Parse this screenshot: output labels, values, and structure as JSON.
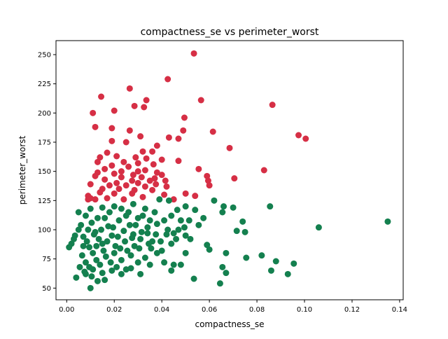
{
  "chart_data": {
    "type": "scatter",
    "title": "compactness_se vs perimeter_worst",
    "xlabel": "compactness_se",
    "ylabel": "perimeter_worst",
    "xlim": [
      -0.0045,
      0.1415
    ],
    "ylim": [
      40,
      262
    ],
    "xticks": [
      0.0,
      0.02,
      0.04,
      0.06,
      0.08,
      0.1,
      0.12,
      0.14
    ],
    "xtick_labels": [
      "0.00",
      "0.02",
      "0.04",
      "0.06",
      "0.08",
      "0.10",
      "0.12",
      "0.14"
    ],
    "yticks": [
      50,
      75,
      100,
      125,
      150,
      175,
      200,
      225,
      250
    ],
    "ytick_labels": [
      "50",
      "75",
      "100",
      "125",
      "150",
      "175",
      "200",
      "225",
      "250"
    ],
    "grid": false,
    "legend": "none",
    "series": [
      {
        "color": "#d62f45",
        "points": [
          [
            0.0535,
            251
          ],
          [
            0.0425,
            229
          ],
          [
            0.0265,
            221
          ],
          [
            0.0145,
            214
          ],
          [
            0.0335,
            211
          ],
          [
            0.0565,
            211
          ],
          [
            0.0865,
            207
          ],
          [
            0.0285,
            206
          ],
          [
            0.0325,
            205
          ],
          [
            0.011,
            200
          ],
          [
            0.02,
            202
          ],
          [
            0.0495,
            196
          ],
          [
            0.012,
            188
          ],
          [
            0.019,
            187
          ],
          [
            0.0265,
            185
          ],
          [
            0.049,
            185
          ],
          [
            0.0615,
            184
          ],
          [
            0.031,
            180
          ],
          [
            0.043,
            179
          ],
          [
            0.047,
            178
          ],
          [
            0.0975,
            181
          ],
          [
            0.1005,
            178
          ],
          [
            0.019,
            176
          ],
          [
            0.025,
            175
          ],
          [
            0.038,
            172
          ],
          [
            0.0685,
            170
          ],
          [
            0.032,
            167
          ],
          [
            0.036,
            167
          ],
          [
            0.017,
            166
          ],
          [
            0.021,
            163
          ],
          [
            0.014,
            162
          ],
          [
            0.029,
            162
          ],
          [
            0.0335,
            161
          ],
          [
            0.04,
            160
          ],
          [
            0.047,
            159
          ],
          [
            0.013,
            158
          ],
          [
            0.024,
            158
          ],
          [
            0.03,
            157
          ],
          [
            0.0365,
            156
          ],
          [
            0.019,
            155
          ],
          [
            0.026,
            154
          ],
          [
            0.016,
            152
          ],
          [
            0.0555,
            152
          ],
          [
            0.033,
            151
          ],
          [
            0.083,
            151
          ],
          [
            0.023,
            150
          ],
          [
            0.03,
            150
          ],
          [
            0.038,
            149
          ],
          [
            0.013,
            149
          ],
          [
            0.02,
            148
          ],
          [
            0.028,
            147
          ],
          [
            0.04,
            147
          ],
          [
            0.012,
            146
          ],
          [
            0.059,
            146
          ],
          [
            0.023,
            145
          ],
          [
            0.0315,
            145
          ],
          [
            0.037,
            144
          ],
          [
            0.0705,
            144
          ],
          [
            0.016,
            143
          ],
          [
            0.0275,
            142
          ],
          [
            0.035,
            142
          ],
          [
            0.0415,
            142
          ],
          [
            0.0595,
            142
          ],
          [
            0.021,
            140
          ],
          [
            0.03,
            140
          ],
          [
            0.0375,
            139
          ],
          [
            0.01,
            139
          ],
          [
            0.018,
            138
          ],
          [
            0.025,
            138
          ],
          [
            0.06,
            138
          ],
          [
            0.033,
            137
          ],
          [
            0.042,
            137
          ],
          [
            0.015,
            135
          ],
          [
            0.022,
            135
          ],
          [
            0.0285,
            134
          ],
          [
            0.036,
            134
          ],
          [
            0.014,
            132
          ],
          [
            0.02,
            131
          ],
          [
            0.0275,
            131
          ],
          [
            0.041,
            130
          ],
          [
            0.05,
            131
          ],
          [
            0.054,
            129
          ],
          [
            0.009,
            129
          ],
          [
            0.01,
            127
          ],
          [
            0.012,
            126
          ],
          [
            0.024,
            126
          ],
          [
            0.032,
            128
          ],
          [
            0.045,
            126
          ],
          [
            0.009,
            126
          ],
          [
            0.017,
            127
          ]
        ]
      },
      {
        "color": "#14804f",
        "points": [
          [
            0.135,
            107
          ],
          [
            0.106,
            102
          ],
          [
            0.0855,
            120
          ],
          [
            0.074,
            107
          ],
          [
            0.0715,
            99
          ],
          [
            0.075,
            98
          ],
          [
            0.07,
            119
          ],
          [
            0.066,
            120
          ],
          [
            0.0655,
            115
          ],
          [
            0.062,
            125
          ],
          [
            0.0575,
            110
          ],
          [
            0.0555,
            104
          ],
          [
            0.059,
            87
          ],
          [
            0.06,
            83
          ],
          [
            0.067,
            80
          ],
          [
            0.082,
            78
          ],
          [
            0.088,
            73
          ],
          [
            0.0955,
            71
          ],
          [
            0.0755,
            76
          ],
          [
            0.086,
            65
          ],
          [
            0.093,
            62
          ],
          [
            0.0655,
            68
          ],
          [
            0.067,
            63
          ],
          [
            0.0645,
            54
          ],
          [
            0.0535,
            58
          ],
          [
            0.01,
            50
          ],
          [
            0.013,
            56
          ],
          [
            0.016,
            57
          ],
          [
            0.004,
            59
          ],
          [
            0.008,
            62
          ],
          [
            0.031,
            62
          ],
          [
            0.044,
            65
          ],
          [
            0.054,
            117
          ],
          [
            0.05,
            120
          ],
          [
            0.048,
            108
          ],
          [
            0.0465,
            117
          ],
          [
            0.043,
            125
          ],
          [
            0.039,
            126
          ],
          [
            0.002,
            88
          ],
          [
            0.0035,
            95
          ],
          [
            0.005,
            100
          ],
          [
            0.006,
            104
          ],
          [
            0.007,
            94
          ],
          [
            0.0085,
            90
          ],
          [
            0.0095,
            85
          ],
          [
            0.011,
            80
          ],
          [
            0.012,
            98
          ],
          [
            0.0135,
            92
          ],
          [
            0.015,
            88
          ],
          [
            0.016,
            110
          ],
          [
            0.0175,
            103
          ],
          [
            0.019,
            95
          ],
          [
            0.0205,
            86
          ],
          [
            0.022,
            108
          ],
          [
            0.024,
            99
          ],
          [
            0.026,
            115
          ],
          [
            0.0275,
            93
          ],
          [
            0.029,
            104
          ],
          [
            0.0305,
            84
          ],
          [
            0.032,
            112
          ],
          [
            0.034,
            97
          ],
          [
            0.036,
            90
          ],
          [
            0.038,
            105
          ],
          [
            0.04,
            82
          ],
          [
            0.042,
            96
          ],
          [
            0.044,
            88
          ],
          [
            0.046,
            92
          ],
          [
            0.048,
            70
          ],
          [
            0.05,
            80
          ],
          [
            0.0065,
            78
          ],
          [
            0.008,
            72
          ],
          [
            0.0095,
            68
          ],
          [
            0.011,
            66
          ],
          [
            0.0125,
            74
          ],
          [
            0.014,
            70
          ],
          [
            0.0165,
            77
          ],
          [
            0.0185,
            72
          ],
          [
            0.021,
            68
          ],
          [
            0.023,
            74
          ],
          [
            0.025,
            66
          ],
          [
            0.027,
            78
          ],
          [
            0.03,
            72
          ],
          [
            0.033,
            76
          ],
          [
            0.035,
            70
          ],
          [
            0.038,
            80
          ],
          [
            0.041,
            72
          ],
          [
            0.045,
            70
          ],
          [
            0.005,
            115
          ],
          [
            0.008,
            112
          ],
          [
            0.01,
            118
          ],
          [
            0.013,
            110
          ],
          [
            0.015,
            119
          ],
          [
            0.018,
            115
          ],
          [
            0.02,
            120
          ],
          [
            0.023,
            118
          ],
          [
            0.025,
            112
          ],
          [
            0.028,
            122
          ],
          [
            0.03,
            110
          ],
          [
            0.033,
            118
          ],
          [
            0.035,
            108
          ],
          [
            0.037,
            115
          ],
          [
            0.041,
            108
          ],
          [
            0.044,
            112
          ],
          [
            0.047,
            100
          ],
          [
            0.05,
            95
          ],
          [
            0.052,
            92
          ],
          [
            0.007,
            86
          ],
          [
            0.009,
            100
          ],
          [
            0.0115,
            96
          ],
          [
            0.0145,
            100
          ],
          [
            0.017,
            90
          ],
          [
            0.0195,
            102
          ],
          [
            0.0215,
            94
          ],
          [
            0.0245,
            90
          ],
          [
            0.0265,
            104
          ],
          [
            0.0285,
            86
          ],
          [
            0.0315,
            98
          ],
          [
            0.0345,
            88
          ],
          [
            0.0375,
            96
          ],
          [
            0.0055,
            68
          ],
          [
            0.0075,
            64
          ],
          [
            0.0105,
            60
          ],
          [
            0.015,
            63
          ],
          [
            0.019,
            65
          ],
          [
            0.023,
            62
          ],
          [
            0.027,
            67
          ],
          [
            0.001,
            85
          ],
          [
            0.003,
            92
          ],
          [
            0.0105,
            106
          ],
          [
            0.0125,
            86
          ],
          [
            0.0155,
            82
          ],
          [
            0.02,
            80
          ],
          [
            0.0225,
            84
          ],
          [
            0.0255,
            82
          ],
          [
            0.028,
            96
          ],
          [
            0.031,
            92
          ],
          [
            0.034,
            102
          ],
          [
            0.0355,
            84
          ],
          [
            0.0395,
            90
          ],
          [
            0.0425,
            100
          ],
          [
            0.045,
            97
          ],
          [
            0.0495,
            102
          ],
          [
            0.0515,
            108
          ]
        ]
      }
    ]
  }
}
